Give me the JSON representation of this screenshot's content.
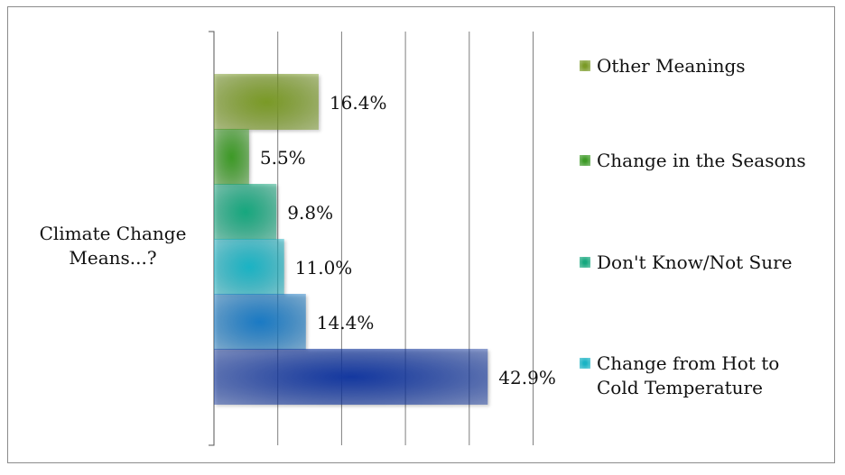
{
  "chart_data": {
    "type": "bar",
    "orientation": "horizontal",
    "stacked": false,
    "category_label": "Climate Change Means...?",
    "series": [
      {
        "name": "Other Meanings",
        "value": 16.4,
        "label": "16.4%",
        "color": "#7a9a26"
      },
      {
        "name": "Change in the Seasons",
        "value": 5.5,
        "label": "5.5%",
        "color": "#3d9a26"
      },
      {
        "name": "Don't Know/Not Sure",
        "value": 9.8,
        "label": "9.8%",
        "color": "#16a77e"
      },
      {
        "name": "Change from Hot to Cold Temperature",
        "value": 11.0,
        "label": "11.0%",
        "color": "#1ab3c4"
      },
      {
        "name": "",
        "value": 14.4,
        "label": "14.4%",
        "color": "#1a7ac4"
      },
      {
        "name": "",
        "value": 42.9,
        "label": "42.9%",
        "color": "#1438a0"
      }
    ],
    "xlim": [
      0,
      50
    ],
    "grid": true,
    "legend": "right"
  }
}
